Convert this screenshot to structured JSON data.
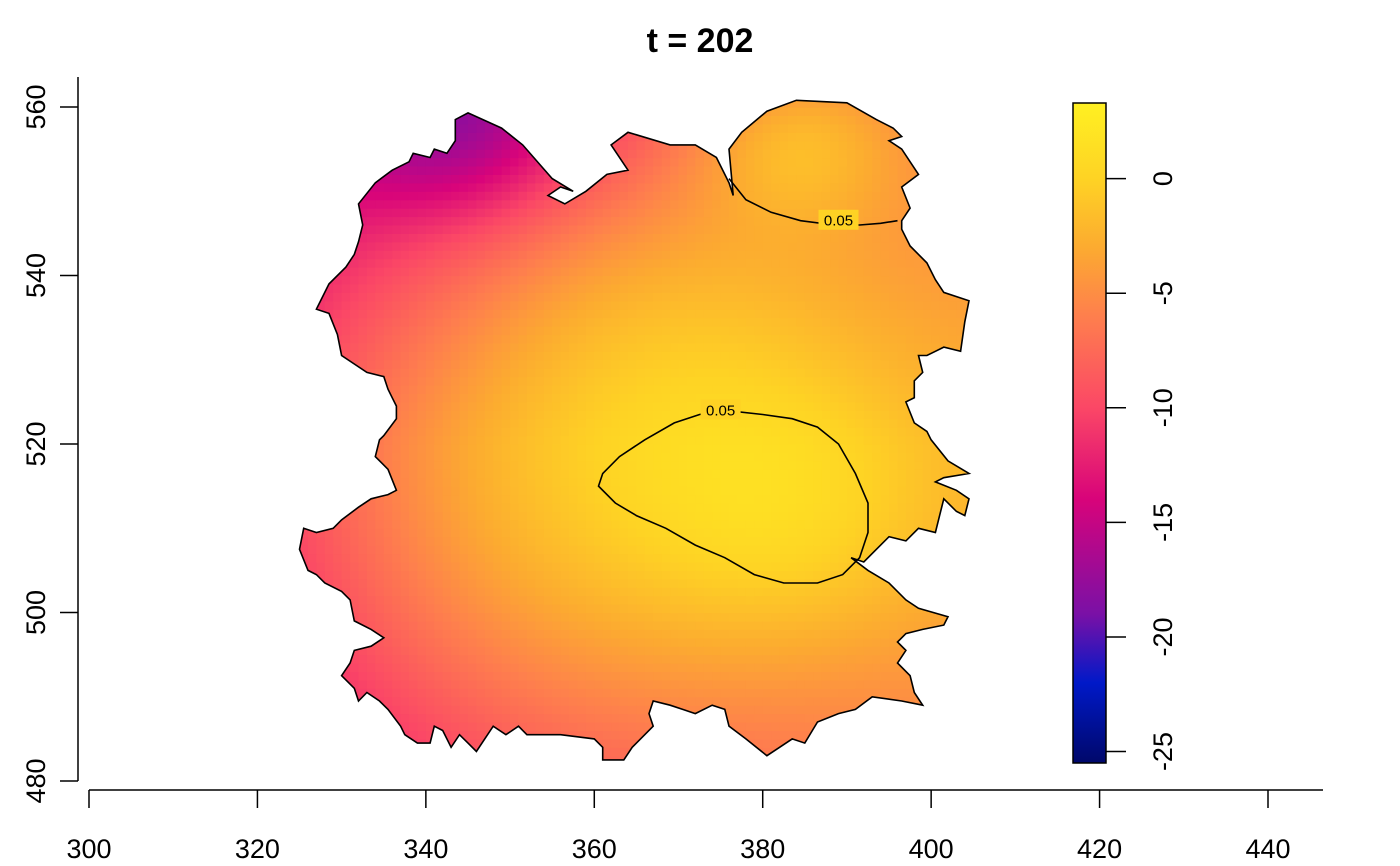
{
  "chart_data": {
    "type": "heatmap",
    "title": "t = 202",
    "xlabel": "",
    "ylabel": "",
    "xlim": [
      298,
      446
    ],
    "ylim": [
      479,
      564
    ],
    "x_ticks": [
      300,
      320,
      340,
      360,
      380,
      400,
      420,
      440
    ],
    "y_ticks": [
      480,
      500,
      520,
      540,
      560
    ],
    "grid": false,
    "colorbar": {
      "range": [
        -25.5,
        3.3
      ],
      "ticks": [
        0,
        -5,
        -10,
        -15,
        -20,
        -25
      ],
      "colors": [
        "#00086a",
        "#0019c8",
        "#7a10a6",
        "#d8037a",
        "#fb4766",
        "#fe7f4d",
        "#fcab30",
        "#fed324",
        "#fff022"
      ],
      "stops": [
        -25.5,
        -22,
        -19,
        -14,
        -10,
        -6,
        -3,
        0,
        3.3
      ]
    },
    "field": {
      "description_values": "raster of values over region; gaussian-like surface",
      "components": [
        {
          "center": [
            354,
            514
          ],
          "sx": 26,
          "sy": 24,
          "amp": 9
        },
        {
          "center": [
            384,
            512
          ],
          "sx": 14,
          "sy": 12,
          "amp": 3.6
        },
        {
          "center": [
            384,
            556
          ],
          "sx": 9,
          "sy": 7,
          "amp": 5
        },
        {
          "center": [
            372,
            538
          ],
          "sx": 18,
          "sy": 12,
          "amp": 2.5
        }
      ],
      "baseline": -13.5,
      "corner_low": {
        "center": [
          344,
          558
        ],
        "sx": 10,
        "sy": 8,
        "amp": -6
      }
    },
    "region_outline": [
      [
        345.0,
        559.3
      ],
      [
        349.0,
        557.5
      ],
      [
        351.5,
        555.5
      ],
      [
        355.0,
        551.5
      ],
      [
        357.5,
        550.0
      ],
      [
        356.0,
        550.5
      ],
      [
        354.5,
        549.5
      ],
      [
        356.5,
        548.5
      ],
      [
        359.0,
        550.0
      ],
      [
        361.5,
        552.0
      ],
      [
        364.0,
        552.5
      ],
      [
        362.0,
        555.5
      ],
      [
        364.0,
        557.0
      ],
      [
        369.0,
        555.5
      ],
      [
        372.0,
        555.5
      ],
      [
        374.5,
        554.0
      ],
      [
        376.0,
        551.0
      ],
      [
        376.5,
        549.5
      ],
      [
        376.0,
        555.0
      ],
      [
        377.5,
        557.0
      ],
      [
        380.5,
        559.5
      ],
      [
        384.0,
        560.8
      ],
      [
        390.0,
        560.5
      ],
      [
        393.5,
        558.5
      ],
      [
        395.5,
        557.5
      ],
      [
        396.5,
        556.5
      ],
      [
        395.0,
        556.0
      ],
      [
        396.5,
        555.0
      ],
      [
        398.5,
        552.0
      ],
      [
        396.5,
        550.5
      ],
      [
        397.5,
        548.0
      ],
      [
        396.5,
        546.5
      ],
      [
        396.5,
        545.5
      ],
      [
        397.5,
        543.5
      ],
      [
        399.5,
        541.5
      ],
      [
        400.5,
        539.5
      ],
      [
        401.5,
        538.0
      ],
      [
        404.5,
        537.0
      ],
      [
        404.0,
        534.5
      ],
      [
        403.5,
        531.0
      ],
      [
        401.5,
        531.5
      ],
      [
        400.5,
        531.0
      ],
      [
        399.5,
        530.5
      ],
      [
        398.5,
        530.5
      ],
      [
        399.0,
        528.5
      ],
      [
        398.0,
        527.5
      ],
      [
        398.0,
        525.5
      ],
      [
        397.0,
        525.0
      ],
      [
        398.0,
        522.5
      ],
      [
        399.5,
        521.5
      ],
      [
        400.0,
        520.5
      ],
      [
        402.0,
        518.0
      ],
      [
        404.5,
        516.5
      ],
      [
        401.5,
        516.0
      ],
      [
        400.5,
        515.5
      ],
      [
        403.0,
        514.5
      ],
      [
        404.5,
        513.5
      ],
      [
        404.0,
        511.5
      ],
      [
        403.0,
        512.0
      ],
      [
        401.5,
        513.5
      ],
      [
        401.0,
        511.5
      ],
      [
        400.5,
        509.5
      ],
      [
        398.5,
        510.0
      ],
      [
        397.0,
        508.5
      ],
      [
        395.0,
        509.0
      ],
      [
        393.5,
        507.5
      ],
      [
        392.0,
        506.0
      ],
      [
        390.5,
        506.5
      ],
      [
        392.5,
        505.0
      ],
      [
        395.0,
        503.5
      ],
      [
        397.0,
        501.5
      ],
      [
        398.5,
        500.5
      ],
      [
        402.0,
        499.5
      ],
      [
        401.5,
        498.5
      ],
      [
        399.0,
        498.0
      ],
      [
        397.0,
        497.5
      ],
      [
        396.0,
        496.5
      ],
      [
        397.0,
        495.5
      ],
      [
        396.0,
        494.0
      ],
      [
        397.5,
        492.5
      ],
      [
        398.0,
        490.5
      ],
      [
        399.0,
        489.0
      ],
      [
        396.5,
        489.5
      ],
      [
        393.0,
        490.0
      ],
      [
        391.0,
        488.5
      ],
      [
        389.0,
        488.0
      ],
      [
        386.5,
        487.0
      ],
      [
        385.0,
        484.5
      ],
      [
        383.5,
        485.0
      ],
      [
        382.0,
        484.0
      ],
      [
        380.5,
        483.0
      ],
      [
        378.0,
        485.0
      ],
      [
        376.0,
        486.5
      ],
      [
        375.5,
        488.5
      ],
      [
        374.0,
        489.0
      ],
      [
        372.0,
        488.0
      ],
      [
        370.5,
        488.5
      ],
      [
        369.0,
        489.0
      ],
      [
        367.0,
        489.5
      ],
      [
        366.5,
        488.0
      ],
      [
        367.0,
        486.5
      ],
      [
        364.5,
        484.0
      ],
      [
        363.5,
        482.5
      ],
      [
        361.0,
        482.5
      ],
      [
        361.0,
        484.0
      ],
      [
        360.0,
        485.0
      ],
      [
        356.0,
        485.5
      ],
      [
        352.0,
        485.5
      ],
      [
        351.0,
        486.5
      ],
      [
        349.5,
        485.5
      ],
      [
        348.0,
        486.5
      ],
      [
        346.0,
        483.5
      ],
      [
        345.0,
        484.5
      ],
      [
        344.0,
        485.5
      ],
      [
        343.0,
        484.0
      ],
      [
        342.0,
        486.0
      ],
      [
        341.0,
        486.5
      ],
      [
        340.5,
        484.5
      ],
      [
        339.0,
        484.5
      ],
      [
        337.5,
        485.5
      ],
      [
        337.0,
        486.5
      ],
      [
        335.5,
        488.5
      ],
      [
        334.5,
        489.5
      ],
      [
        333.0,
        490.5
      ],
      [
        332.0,
        489.5
      ],
      [
        331.5,
        491.0
      ],
      [
        330.0,
        492.5
      ],
      [
        331.0,
        494.0
      ],
      [
        331.5,
        495.5
      ],
      [
        333.5,
        496.0
      ],
      [
        335.0,
        497.0
      ],
      [
        333.5,
        498.0
      ],
      [
        331.5,
        499.0
      ],
      [
        331.0,
        501.5
      ],
      [
        330.0,
        502.5
      ],
      [
        328.0,
        503.5
      ],
      [
        327.0,
        504.5
      ],
      [
        326.0,
        505.0
      ],
      [
        325.0,
        507.5
      ],
      [
        325.5,
        510.0
      ],
      [
        327.0,
        509.5
      ],
      [
        329.0,
        510.0
      ],
      [
        330.0,
        511.0
      ],
      [
        332.0,
        512.5
      ],
      [
        333.5,
        513.5
      ],
      [
        335.5,
        514.0
      ],
      [
        336.5,
        514.5
      ],
      [
        335.5,
        517.0
      ],
      [
        334.0,
        518.5
      ],
      [
        334.5,
        520.5
      ],
      [
        335.0,
        521.0
      ],
      [
        336.5,
        523.0
      ],
      [
        336.5,
        524.5
      ],
      [
        336.0,
        525.5
      ],
      [
        335.5,
        526.5
      ],
      [
        335.0,
        528.0
      ],
      [
        333.0,
        528.5
      ],
      [
        331.5,
        529.5
      ],
      [
        330.0,
        530.5
      ],
      [
        329.5,
        533.0
      ],
      [
        328.5,
        535.5
      ],
      [
        327.0,
        536.0
      ],
      [
        328.5,
        539.0
      ],
      [
        330.5,
        541.0
      ],
      [
        331.5,
        542.5
      ],
      [
        332.0,
        544.0
      ],
      [
        332.5,
        546.0
      ],
      [
        332.0,
        548.5
      ],
      [
        334.0,
        551.0
      ],
      [
        336.0,
        552.5
      ],
      [
        338.0,
        553.5
      ],
      [
        338.5,
        554.5
      ],
      [
        340.5,
        554.0
      ],
      [
        341.0,
        555.0
      ],
      [
        342.5,
        554.5
      ],
      [
        343.5,
        556.0
      ],
      [
        343.5,
        558.5
      ]
    ],
    "contours": [
      {
        "label": "0.05",
        "points": [
          [
            376.0,
            551.5
          ],
          [
            378.0,
            549.0
          ],
          [
            381.0,
            547.5
          ],
          [
            384.5,
            546.5
          ],
          [
            388.5,
            546.0
          ],
          [
            391.5,
            546.0
          ],
          [
            394.0,
            546.2
          ],
          [
            396.0,
            546.5
          ]
        ],
        "label_at": [
          389.0,
          546.5
        ]
      },
      {
        "label": "0.05",
        "points": [
          [
            380.0,
            523.5
          ],
          [
            383.5,
            523.0
          ],
          [
            386.5,
            522.0
          ],
          [
            389.0,
            520.0
          ],
          [
            391.0,
            516.5
          ],
          [
            392.5,
            513.0
          ],
          [
            392.5,
            509.5
          ],
          [
            391.5,
            506.5
          ],
          [
            389.5,
            504.5
          ],
          [
            386.5,
            503.5
          ],
          [
            382.5,
            503.5
          ],
          [
            379.0,
            504.5
          ],
          [
            375.5,
            506.5
          ],
          [
            372.0,
            508.0
          ],
          [
            368.5,
            510.0
          ],
          [
            365.0,
            511.5
          ],
          [
            362.5,
            513.0
          ],
          [
            360.5,
            515.0
          ],
          [
            361.0,
            516.5
          ],
          [
            363.0,
            518.5
          ],
          [
            366.0,
            520.5
          ],
          [
            369.5,
            522.5
          ],
          [
            372.5,
            523.5
          ],
          [
            375.5,
            524.0
          ]
        ],
        "label_at": [
          375.0,
          524.0
        ]
      }
    ]
  }
}
